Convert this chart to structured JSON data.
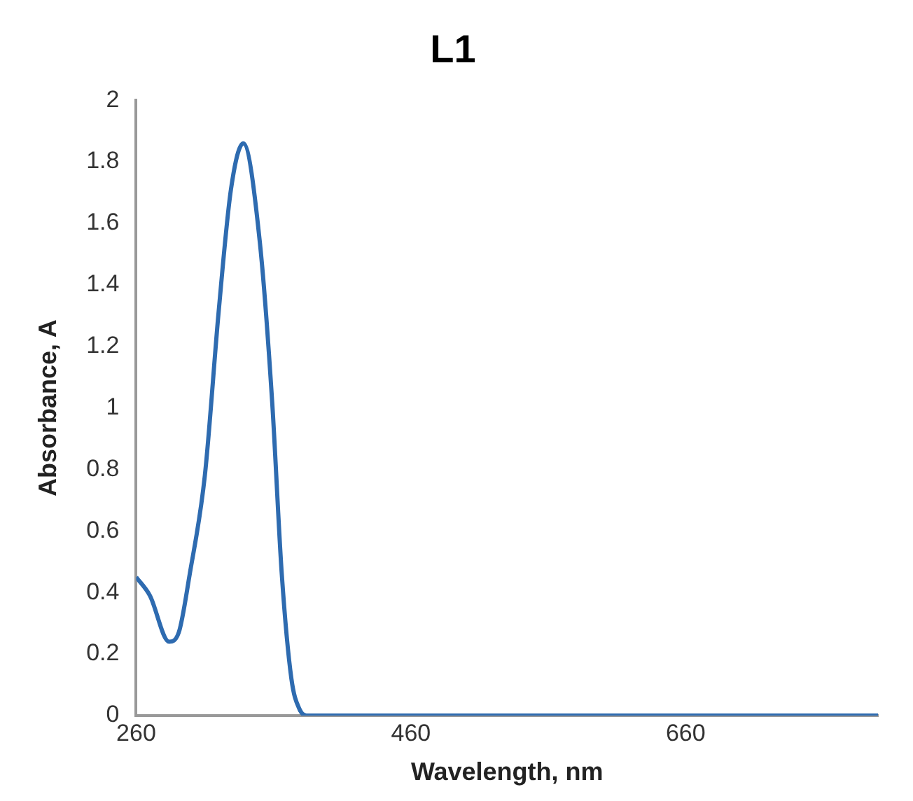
{
  "chart_data": {
    "type": "line",
    "title": "L1",
    "xlabel": "Wavelength, nm",
    "ylabel": "Absorbance, A",
    "series": [
      {
        "color": "#2e6bb0",
        "x": [
          260,
          270,
          284,
          291,
          299,
          310,
          320,
          329,
          338,
          350,
          359,
          366,
          373,
          379,
          384,
          450,
          550,
          650,
          750,
          800
        ],
        "values": [
          0.45,
          0.39,
          0.24,
          0.27,
          0.46,
          0.78,
          1.31,
          1.71,
          1.86,
          1.54,
          1.02,
          0.46,
          0.12,
          0.02,
          0,
          0,
          0,
          0,
          0,
          0
        ]
      }
    ],
    "xlim": [
      260,
      800
    ],
    "xticks": [
      260,
      460,
      660
    ],
    "ylim": [
      0,
      2
    ],
    "yticks": [
      0,
      0.2,
      0.4,
      0.6,
      0.8,
      1,
      1.2,
      1.4,
      1.6,
      1.8,
      2
    ],
    "grid": false,
    "legend": false,
    "marker": "none",
    "line_style": "solid"
  }
}
